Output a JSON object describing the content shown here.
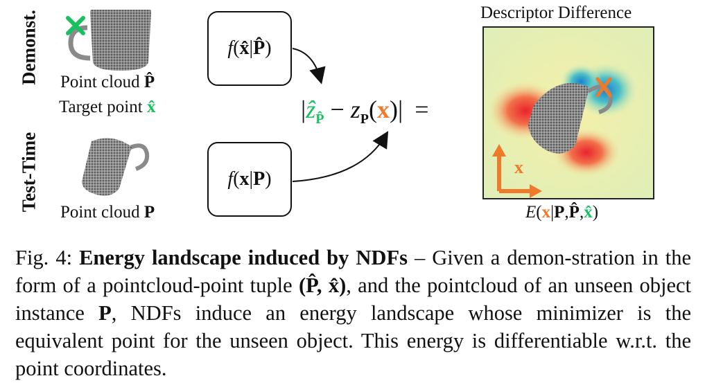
{
  "diagram": {
    "row_demo_label": "Demonst.",
    "row_test_label": "Test-Time",
    "demo_cloud_caption": "Point cloud",
    "demo_cloud_symbol": "P̂",
    "demo_target_caption": "Target point",
    "demo_target_symbol": "x̂",
    "test_cloud_caption": "Point cloud",
    "test_cloud_symbol": "P",
    "demo_function": {
      "f": "f",
      "open": "(",
      "x": "x̂",
      "bar": "|",
      "p": "P̂",
      "close": ")"
    },
    "test_function": {
      "f": "f",
      "open": "(",
      "x": "x",
      "bar": "|",
      "p": "P",
      "close": ")"
    },
    "equation": {
      "left_bar": "|",
      "z_hat": "ẑ",
      "z_hat_sub": "P̂",
      "minus": "−",
      "z": "z",
      "z_sub": "P",
      "open": "(",
      "x": "x",
      "close": ")",
      "right_bar": "|",
      "equals": "="
    },
    "heatmap_title": "Descriptor Difference",
    "axis_label": "x",
    "energy_label": {
      "E": "E",
      "open": "(",
      "x": "x",
      "bar": "|",
      "p": "P",
      "comma1": ",",
      "phat": "P̂",
      "comma2": ",",
      "xhat": "x̂",
      "close": ")"
    },
    "colors": {
      "target_green": "#18c060",
      "query_orange": "#ee7a2c"
    }
  },
  "caption": {
    "prefix": "Fig. 4:",
    "title": "Energy landscape induced by NDFs",
    "body_1": " – Given a demon-stration in the form of a pointcloud-point tuple ",
    "tuple": "(P̂, x̂)",
    "body_2": ", and the pointcloud of an unseen object instance ",
    "p_symbol": "P",
    "body_3": ", NDFs induce an energy landscape whose minimizer is the equivalent point for the unseen object. This energy is differentiable w.r.t. the point coordinates."
  }
}
